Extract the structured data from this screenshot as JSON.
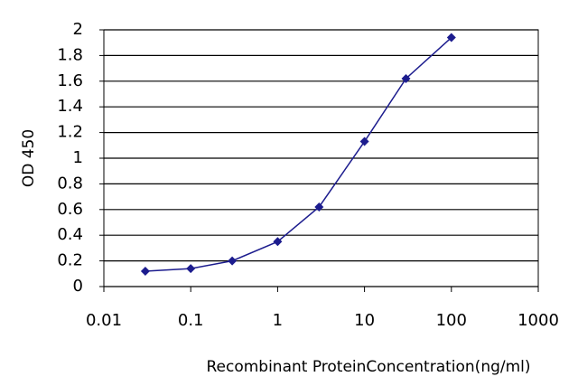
{
  "chart_data": {
    "type": "line",
    "x_label": "Recombinant ProteinConcentration(ng/ml)",
    "y_label": "OD 450",
    "x": [
      0.03,
      0.1,
      0.3,
      1,
      3,
      10,
      30,
      100
    ],
    "series": [
      {
        "color": "#1c1c8e",
        "values": [
          0.12,
          0.14,
          0.2,
          0.35,
          0.62,
          1.13,
          1.62,
          1.94
        ]
      }
    ],
    "xscale": "log",
    "xlim": [
      0.01,
      1000
    ],
    "xticks": [
      0.01,
      0.1,
      1,
      10,
      100,
      1000
    ],
    "ylim": [
      0,
      2
    ],
    "yticks": [
      0,
      0.2,
      0.4,
      0.6,
      0.8,
      1,
      1.2,
      1.4,
      1.6,
      1.8,
      2
    ],
    "grid": true
  }
}
